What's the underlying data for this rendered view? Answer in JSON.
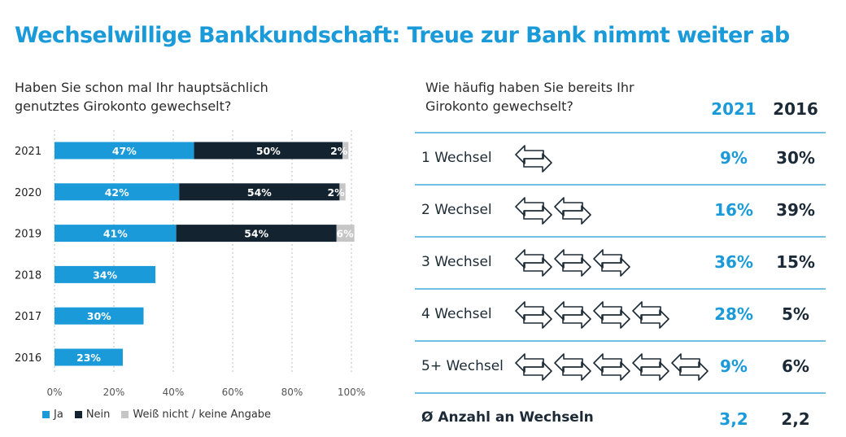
{
  "title": "Wechselwillige Bankkundschaft: Treue zur Bank nimmt weiter ab",
  "chart_data": [
    {
      "type": "bar",
      "orientation": "horizontal",
      "stacked": true,
      "title": "Haben Sie schon mal Ihr hauptsächlich\ngenutztes Girokonto gewechselt?",
      "categories": [
        "2021",
        "2020",
        "2019",
        "2018",
        "2017",
        "2016"
      ],
      "series": [
        {
          "name": "Ja",
          "color": "#1a9ad9",
          "values": [
            47,
            42,
            41,
            34,
            30,
            23
          ],
          "labels": [
            "47%",
            "42%",
            "41%",
            "34%",
            "30%",
            "23%"
          ]
        },
        {
          "name": "Nein",
          "color": "#13232f",
          "values": [
            50,
            54,
            54,
            null,
            null,
            null
          ],
          "labels": [
            "50%",
            "54%",
            "54%",
            "",
            "",
            ""
          ]
        },
        {
          "name": "Weiß nicht / keine Angabe",
          "color": "#c6c6c6",
          "values": [
            2,
            2,
            6,
            null,
            null,
            null
          ],
          "labels": [
            "2%",
            "2%",
            "6%",
            "",
            "",
            ""
          ]
        }
      ],
      "xlim": [
        0,
        100
      ],
      "xticks": [
        "0%",
        "20%",
        "40%",
        "60%",
        "80%",
        "100%"
      ],
      "grid": "vertical-dashed",
      "legend": "bottom-left"
    },
    {
      "type": "table",
      "title": "Wie häufig haben Sie bereits Ihr\nGirokonto gewechselt?",
      "columns": [
        "2021",
        "2016"
      ],
      "column_colors": [
        "#1a9ad9",
        "#13232f"
      ],
      "rows": [
        {
          "label": "1 Wechsel",
          "icons": 1,
          "values": [
            "9%",
            "30%"
          ]
        },
        {
          "label": "2 Wechsel",
          "icons": 2,
          "values": [
            "16%",
            "39%"
          ]
        },
        {
          "label": "3 Wechsel",
          "icons": 3,
          "values": [
            "36%",
            "15%"
          ]
        },
        {
          "label": "4 Wechsel",
          "icons": 4,
          "values": [
            "28%",
            "5%"
          ]
        },
        {
          "label": "5+ Wechsel",
          "icons": 5,
          "values": [
            "9%",
            "6%"
          ]
        }
      ],
      "summary": {
        "label": "Ø Anzahl an Wechseln",
        "values": [
          "3,2",
          "2,2"
        ]
      },
      "icon": "swap-arrows-icon"
    }
  ]
}
